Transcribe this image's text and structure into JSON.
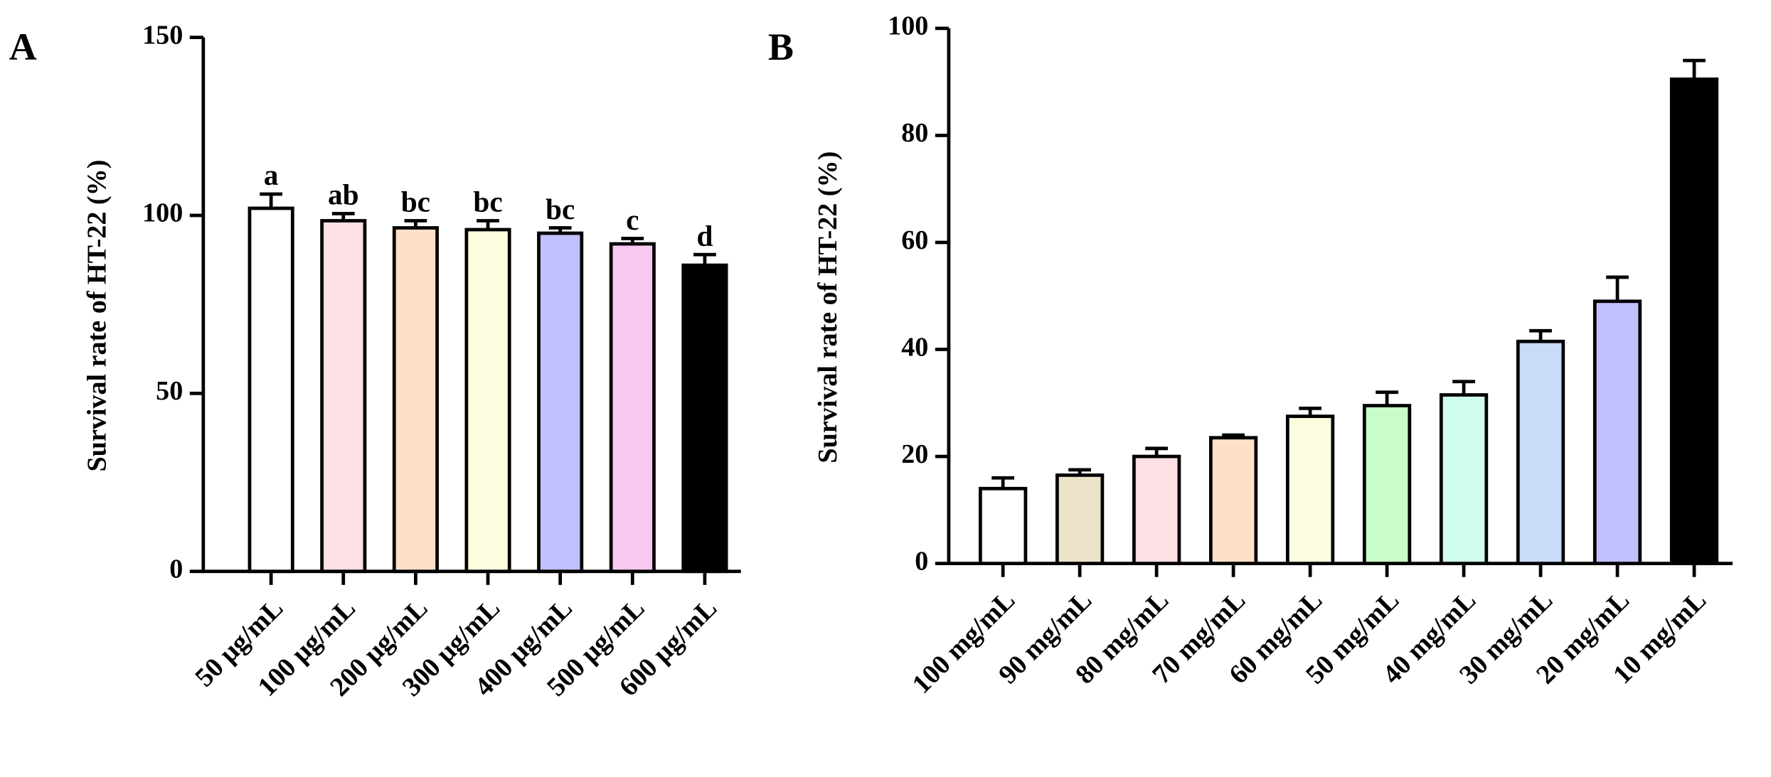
{
  "chart_data": [
    {
      "type": "bar",
      "panel": "A",
      "ylabel": "Survival rate of HT-22 (%)",
      "categories": [
        "50 μg/mL",
        "100 μg/mL",
        "200 μg/mL",
        "300 μg/mL",
        "400 μg/mL",
        "500 μg/mL",
        "600 μg/mL"
      ],
      "values": [
        102,
        98.5,
        96.5,
        96,
        95,
        92,
        86
      ],
      "errors": [
        4,
        2,
        2,
        2.5,
        1.5,
        1.5,
        3
      ],
      "annotations": [
        "a",
        "ab",
        "bc",
        "bc",
        "bc",
        "c",
        "d"
      ],
      "colors": [
        "#ffffff",
        "#fde0e3",
        "#fde0c8",
        "#fdfde0",
        "#c0c0fc",
        "#f8c8f0",
        "#000000"
      ],
      "ylim": [
        0,
        150
      ],
      "yticks": [
        0,
        50,
        100,
        150
      ]
    },
    {
      "type": "bar",
      "panel": "B",
      "ylabel": "Survival rate of HT-22 (%)",
      "categories": [
        "100 mg/mL",
        "90 mg/mL",
        "80 mg/mL",
        "70 mg/mL",
        "60 mg/mL",
        "50 mg/mL",
        "40 mg/mL",
        "30 mg/mL",
        "20 mg/mL",
        "10 mg/mL"
      ],
      "values": [
        14,
        16.5,
        20,
        23.5,
        27.5,
        29.5,
        31.5,
        41.5,
        49,
        90.5
      ],
      "errors": [
        2,
        1,
        1.5,
        0.5,
        1.5,
        2.5,
        2.5,
        2,
        4.5,
        3.5
      ],
      "colors": [
        "#ffffff",
        "#ece4c8",
        "#fde0e3",
        "#fde0c8",
        "#fdfde0",
        "#c8fcc8",
        "#d0fcec",
        "#c8dcf8",
        "#c0c0fc",
        "#000000"
      ],
      "ylim": [
        0,
        100
      ],
      "yticks": [
        0,
        20,
        40,
        60,
        80,
        100
      ]
    }
  ]
}
